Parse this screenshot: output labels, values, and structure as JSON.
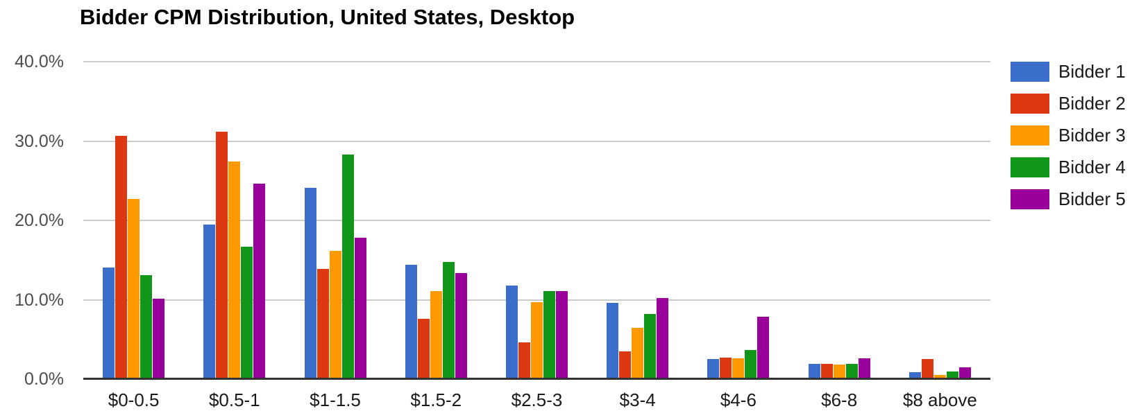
{
  "chart_data": {
    "type": "bar",
    "title": "Bidder CPM Distribution, United States, Desktop",
    "categories": [
      "$0-0.5",
      "$0.5-1",
      "$1-1.5",
      "$1.5-2",
      "$2.5-3",
      "$3-4",
      "$4-6",
      "$6-8",
      "$8 above"
    ],
    "series": [
      {
        "name": "Bidder 1",
        "color": "#3B6DCB",
        "values": [
          14.1,
          19.5,
          24.1,
          14.4,
          11.8,
          9.6,
          2.5,
          1.9,
          0.9
        ]
      },
      {
        "name": "Bidder 2",
        "color": "#DC3912",
        "values": [
          30.7,
          31.2,
          13.9,
          7.6,
          4.6,
          3.5,
          2.7,
          1.9,
          2.5
        ]
      },
      {
        "name": "Bidder 3",
        "color": "#FF9900",
        "values": [
          22.7,
          27.4,
          16.2,
          11.1,
          9.7,
          6.5,
          2.6,
          1.8,
          0.5
        ]
      },
      {
        "name": "Bidder 4",
        "color": "#109618",
        "values": [
          13.1,
          16.7,
          28.3,
          14.8,
          11.1,
          8.2,
          3.7,
          1.9,
          1.0
        ]
      },
      {
        "name": "Bidder 5",
        "color": "#990099",
        "values": [
          10.1,
          24.6,
          17.8,
          13.4,
          11.1,
          10.2,
          7.9,
          2.6,
          1.5
        ]
      }
    ],
    "y_axis": {
      "max": 40,
      "ticks": [
        {
          "label": "0.0%",
          "value": 0
        },
        {
          "label": "10.0%",
          "value": 10
        },
        {
          "label": "20.0%",
          "value": 20
        },
        {
          "label": "30.0%",
          "value": 30
        },
        {
          "label": "40.0%",
          "value": 40
        }
      ]
    },
    "legend_position": "right",
    "grid": true,
    "colors": {
      "gridline": "#CCCCCC",
      "baseline": "#333333",
      "axis_text": "#4D4D4D",
      "category_text": "#1A1A1A",
      "title_text": "#000000",
      "background": "#FFFFFF"
    }
  }
}
